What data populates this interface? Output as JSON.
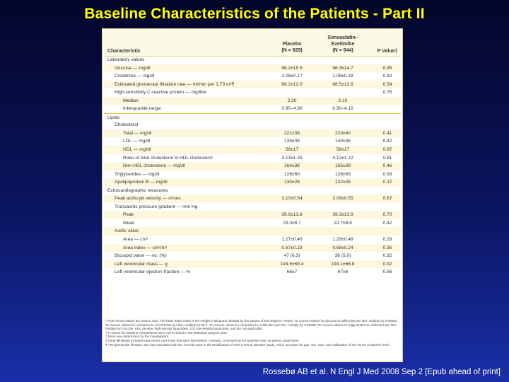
{
  "title": "Baseline Characteristics of the Patients - Part II",
  "citation": "Rossebø AB et al. N Engl J Med 2008 Sep 2 [Epub ahead of print]",
  "table": {
    "headers": {
      "characteristic": "Characteristic",
      "placebo_line1": "Placebo",
      "placebo_line2": "(N = 929)",
      "simva_line1": "Simvastatin–",
      "simva_line2": "Ezetimibe",
      "simva_line3": "(N = 944)",
      "pvalue": "P Value‡"
    },
    "rows": [
      {
        "label": "Laboratory values",
        "level": 0,
        "placebo": "",
        "simva": "",
        "p": "",
        "shade": false,
        "sep": false
      },
      {
        "label": "Glucose — mg/dl",
        "level": 1,
        "placebo": "96.2±15.5",
        "simva": "96.3±14.7",
        "p": "0.95",
        "shade": true,
        "sep": false
      },
      {
        "label": "Creatinine — mg/dl",
        "level": 1,
        "placebo": "1.06±0.17",
        "simva": "1.06±0.18",
        "p": "0.82",
        "shade": false,
        "sep": false
      },
      {
        "label": "Estimated glomerular filtration rate — ml/min per 1.73 m²¶",
        "level": 1,
        "placebo": "68.2±12.0",
        "simva": "68.5±12.6",
        "p": "0.54",
        "shade": true,
        "sep": false
      },
      {
        "label": "High-sensitivity C-reactive protein — mg/liter",
        "level": 1,
        "placebo": "",
        "simva": "",
        "p": "0.76",
        "shade": false,
        "sep": false
      },
      {
        "label": "Median",
        "level": 2,
        "placebo": "2.20",
        "simva": "2.10",
        "p": "",
        "shade": true,
        "sep": false
      },
      {
        "label": "Interquartile range",
        "level": 2,
        "placebo": "0.90–4.90",
        "simva": "0.90–4.10",
        "p": "",
        "shade": false,
        "sep": false
      },
      {
        "label": "Lipids",
        "level": 0,
        "placebo": "",
        "simva": "",
        "p": "",
        "shade": false,
        "sep": true
      },
      {
        "label": "Cholesterol",
        "level": 1,
        "placebo": "",
        "simva": "",
        "p": "",
        "shade": false,
        "sep": false
      },
      {
        "label": "Total — mg/dl",
        "level": 2,
        "placebo": "221±38",
        "simva": "223±40",
        "p": "0.41",
        "shade": true,
        "sep": false
      },
      {
        "label": "LDL — mg/dl",
        "level": 2,
        "placebo": "139±35",
        "simva": "140±36",
        "p": "0.42",
        "shade": false,
        "sep": false
      },
      {
        "label": "HDL — mg/dl",
        "level": 2,
        "placebo": "58±17",
        "simva": "58±17",
        "p": "0.87",
        "shade": true,
        "sep": false
      },
      {
        "label": "Ratio of total cholesterol to HDL cholesterol",
        "level": 2,
        "placebo": "4.13±1.39",
        "simva": "4.12±1.22",
        "p": "0.81",
        "shade": false,
        "sep": false
      },
      {
        "label": "Non-HDL cholesterol — mg/dl",
        "level": 2,
        "placebo": "164±38",
        "simva": "165±39",
        "p": "0.46",
        "shade": true,
        "sep": false
      },
      {
        "label": "Triglycerides — mg/dl",
        "level": 1,
        "placebo": "126±60",
        "simva": "126±63",
        "p": "0.93",
        "shade": false,
        "sep": false
      },
      {
        "label": "Apolipoprotein B — mg/dl",
        "level": 1,
        "placebo": "130±28",
        "simva": "132±28",
        "p": "0.37",
        "shade": true,
        "sep": false
      },
      {
        "label": "Echocardiographic measures",
        "level": 0,
        "placebo": "",
        "simva": "",
        "p": "",
        "shade": false,
        "sep": false
      },
      {
        "label": "Peak aortic-jet velocity — m/sec",
        "level": 1,
        "placebo": "3.10±0.54",
        "simva": "3.09±0.55",
        "p": "0.67",
        "shade": true,
        "sep": false
      },
      {
        "label": "Transaortic pressure gradient — mm Hg",
        "level": 1,
        "placebo": "",
        "simva": "",
        "p": "",
        "shade": false,
        "sep": false
      },
      {
        "label": "Peak",
        "level": 2,
        "placebo": "39.6±13.8",
        "simva": "39.3±13.9",
        "p": "0.70",
        "shade": true,
        "sep": false
      },
      {
        "label": "Mean",
        "level": 2,
        "placebo": "23.0±8.7",
        "simva": "22.7±8.8",
        "p": "0.42",
        "shade": false,
        "sep": false
      },
      {
        "label": "Aortic valve",
        "level": 1,
        "placebo": "",
        "simva": "",
        "p": "",
        "shade": true,
        "sep": false
      },
      {
        "label": "Area — cm²",
        "level": 2,
        "placebo": "1.27±0.46",
        "simva": "1.29±0.48",
        "p": "0.29",
        "shade": false,
        "sep": false
      },
      {
        "label": "Area index — cm²/m²",
        "level": 2,
        "placebo": "0.67±0.23",
        "simva": "0.68±0.24",
        "p": "0.35",
        "shade": true,
        "sep": false
      },
      {
        "label": "Bicuspid valve — no. (%)",
        "level": 1,
        "placebo": "47 (6.3)",
        "simva": "38 (5.0)",
        "p": "0.32",
        "shade": false,
        "sep": false
      },
      {
        "label": "Left ventricular mass — g",
        "level": 1,
        "placebo": "194.5±69.4",
        "simva": "194.1±66.8",
        "p": "0.92",
        "shade": true,
        "sep": false
      },
      {
        "label": "Left ventricular ejection fraction — %",
        "level": 1,
        "placebo": "66±7",
        "simva": "67±6",
        "p": "0.56",
        "shade": false,
        "sep": false
      }
    ],
    "footnotes": [
      "* Plus–minus values are means ±SD. The body-mass index is the weight in kilograms divided by the square of the height in meters. To convert values for glucose to millimoles per liter, multiply by 0.05551. To convert values for creatinine to micromoles per liter, multiply by 88.4. To convert values for cholesterol to millimoles per liter, multiply by 0.02586. To convert values for triglycerides to millimoles per liter, multiply by 0.01129. HDL denotes high-density lipoprotein, LDL low-density lipoprotein, and NA not applicable.",
      "† P values for baseline comparisons were not included in the statistical analysis plan.",
      "‡ Race was determined by the investigators.",
      "§ Atrial fibrillation included past events and those that were intermittent, constant, or present at the baseline visit, as well as atrial flutter.",
      "¶ The glomerular filtration rate was calculated with the formula used in the Modification of Diet in Renal Disease Study, which accounts for age, sex, race, and calibration of the serum creatinine level."
    ]
  }
}
